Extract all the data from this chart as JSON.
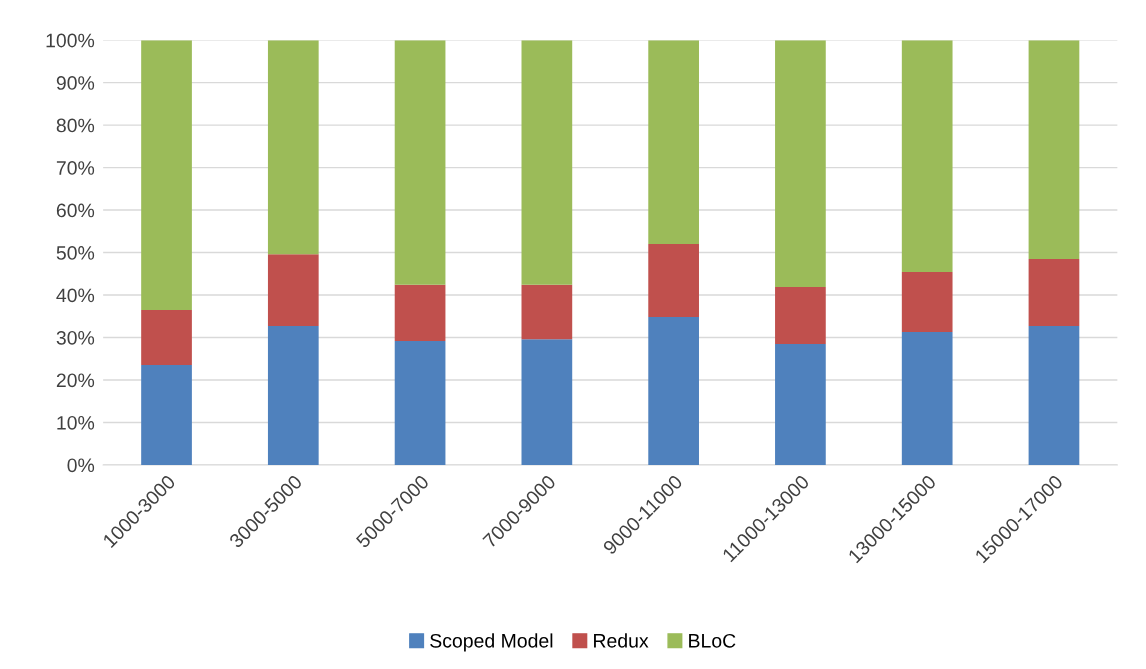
{
  "chart_data": {
    "type": "bar",
    "stacked": true,
    "categories": [
      "1000-3000",
      "3000-5000",
      "5000-7000",
      "7000-9000",
      "9000-11000",
      "11000-13000",
      "13000-15000",
      "15000-17000"
    ],
    "series": [
      {
        "name": "Scoped Model",
        "color": "#4f81bd",
        "values": [
          23.5,
          32.7,
          29.2,
          29.6,
          34.8,
          28.5,
          31.3,
          32.7
        ]
      },
      {
        "name": "Redux",
        "color": "#c0504d",
        "values": [
          13.0,
          16.9,
          13.2,
          12.8,
          17.2,
          13.4,
          14.1,
          15.8
        ]
      },
      {
        "name": "BLoC",
        "color": "#9bbb59",
        "values": [
          63.5,
          50.4,
          57.6,
          57.6,
          48.0,
          58.1,
          54.6,
          51.5
        ]
      }
    ],
    "ylim": [
      0,
      100
    ],
    "yticks": [
      {
        "value": 0,
        "label": "0%"
      },
      {
        "value": 10,
        "label": "10%"
      },
      {
        "value": 20,
        "label": "20%"
      },
      {
        "value": 30,
        "label": "30%"
      },
      {
        "value": 40,
        "label": "40%"
      },
      {
        "value": 50,
        "label": "50%"
      },
      {
        "value": 60,
        "label": "60%"
      },
      {
        "value": 70,
        "label": "70%"
      },
      {
        "value": 80,
        "label": "80%"
      },
      {
        "value": 90,
        "label": "90%"
      },
      {
        "value": 100,
        "label": "100%"
      }
    ],
    "grid": "y",
    "legend": "bottom"
  }
}
